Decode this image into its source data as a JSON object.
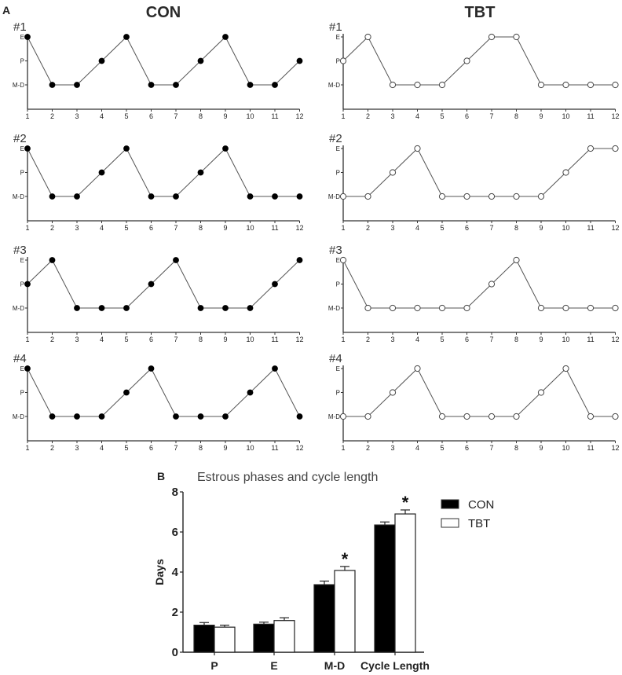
{
  "figure": {
    "panel_a_label": "A",
    "panel_b_label": "B"
  },
  "chart_data": [
    {
      "type": "line",
      "panel": "A",
      "group_titles": [
        "CON",
        "TBT"
      ],
      "x": [
        1,
        2,
        3,
        4,
        5,
        6,
        7,
        8,
        9,
        10,
        11,
        12
      ],
      "xlabel": "",
      "ylabel": "",
      "y_categories": [
        "M-D",
        "P",
        "E"
      ],
      "series": [
        {
          "group": "CON",
          "name": "#1",
          "marker": "filled",
          "values": [
            "E",
            "M-D",
            "M-D",
            "P",
            "E",
            "M-D",
            "M-D",
            "P",
            "E",
            "M-D",
            "M-D",
            "P"
          ]
        },
        {
          "group": "CON",
          "name": "#2",
          "marker": "filled",
          "values": [
            "E",
            "M-D",
            "M-D",
            "P",
            "E",
            "M-D",
            "M-D",
            "P",
            "E",
            "M-D",
            "M-D",
            "M-D"
          ]
        },
        {
          "group": "CON",
          "name": "#3",
          "marker": "filled",
          "values": [
            "P",
            "E",
            "M-D",
            "M-D",
            "M-D",
            "P",
            "E",
            "M-D",
            "M-D",
            "M-D",
            "P",
            "E"
          ]
        },
        {
          "group": "CON",
          "name": "#4",
          "marker": "filled",
          "values": [
            "E",
            "M-D",
            "M-D",
            "M-D",
            "P",
            "E",
            "M-D",
            "M-D",
            "M-D",
            "P",
            "E",
            "M-D"
          ]
        },
        {
          "group": "TBT",
          "name": "#1",
          "marker": "open",
          "values": [
            "P",
            "E",
            "M-D",
            "M-D",
            "M-D",
            "P",
            "E",
            "E",
            "M-D",
            "M-D",
            "M-D",
            "M-D"
          ]
        },
        {
          "group": "TBT",
          "name": "#2",
          "marker": "open",
          "values": [
            "M-D",
            "M-D",
            "P",
            "E",
            "M-D",
            "M-D",
            "M-D",
            "M-D",
            "M-D",
            "P",
            "E",
            "E"
          ]
        },
        {
          "group": "TBT",
          "name": "#3",
          "marker": "open",
          "values": [
            "E",
            "M-D",
            "M-D",
            "M-D",
            "M-D",
            "M-D",
            "P",
            "E",
            "M-D",
            "M-D",
            "M-D",
            "M-D"
          ]
        },
        {
          "group": "TBT",
          "name": "#4",
          "marker": "open",
          "values": [
            "M-D",
            "M-D",
            "P",
            "E",
            "M-D",
            "M-D",
            "M-D",
            "M-D",
            "P",
            "E",
            "M-D",
            "M-D"
          ]
        }
      ]
    },
    {
      "type": "bar",
      "panel": "B",
      "title": "Estrous phases and cycle length",
      "xlabel": "",
      "ylabel": "Days",
      "ylim": [
        0,
        8
      ],
      "yticks": [
        0,
        2,
        4,
        6,
        8
      ],
      "categories": [
        "P",
        "E",
        "M-D",
        "Cycle Length"
      ],
      "series": [
        {
          "name": "CON",
          "color": "#000000",
          "values": [
            1.35,
            1.4,
            3.37,
            6.35
          ],
          "errors": [
            0.13,
            0.1,
            0.18,
            0.15
          ]
        },
        {
          "name": "TBT",
          "color": "#ffffff",
          "values": [
            1.25,
            1.58,
            4.08,
            6.9
          ],
          "errors": [
            0.1,
            0.14,
            0.2,
            0.2
          ]
        }
      ],
      "significance": [
        {
          "category": "M-D",
          "series": "TBT",
          "mark": "*"
        },
        {
          "category": "Cycle Length",
          "series": "TBT",
          "mark": "*"
        }
      ],
      "legend": {
        "position": "right",
        "entries": [
          "CON",
          "TBT"
        ]
      },
      "grid": false
    }
  ]
}
